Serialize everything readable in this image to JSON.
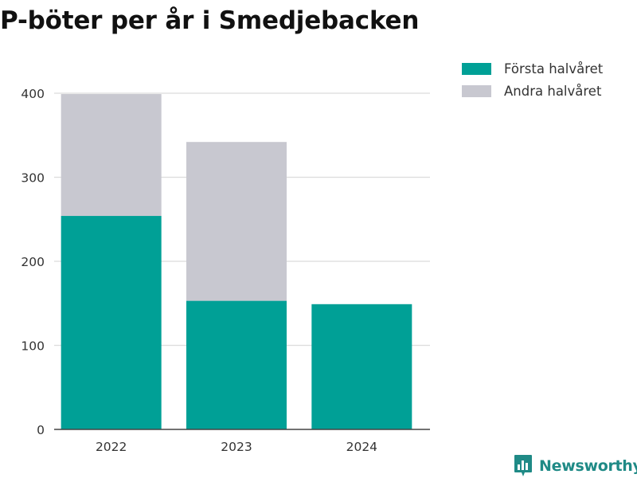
{
  "title": "P-böter per år i Smedjebacken",
  "chart_data": {
    "type": "bar",
    "stacked": true,
    "categories": [
      "2022",
      "2023",
      "2024"
    ],
    "series": [
      {
        "name": "Första halvåret",
        "color": "#00a096",
        "values": [
          254,
          153,
          149
        ]
      },
      {
        "name": "Andra halvåret",
        "color": "#c8c8d0",
        "values": [
          145,
          189,
          0
        ]
      }
    ],
    "y_ticks": [
      "0",
      "100",
      "200",
      "300",
      "400"
    ],
    "ylim": [
      0,
      400
    ],
    "grid": true,
    "legend_position": "top-right"
  },
  "brand": {
    "name": "Newsworthy",
    "color": "#1f8a86",
    "icon": "newsworthy-logo-icon"
  }
}
